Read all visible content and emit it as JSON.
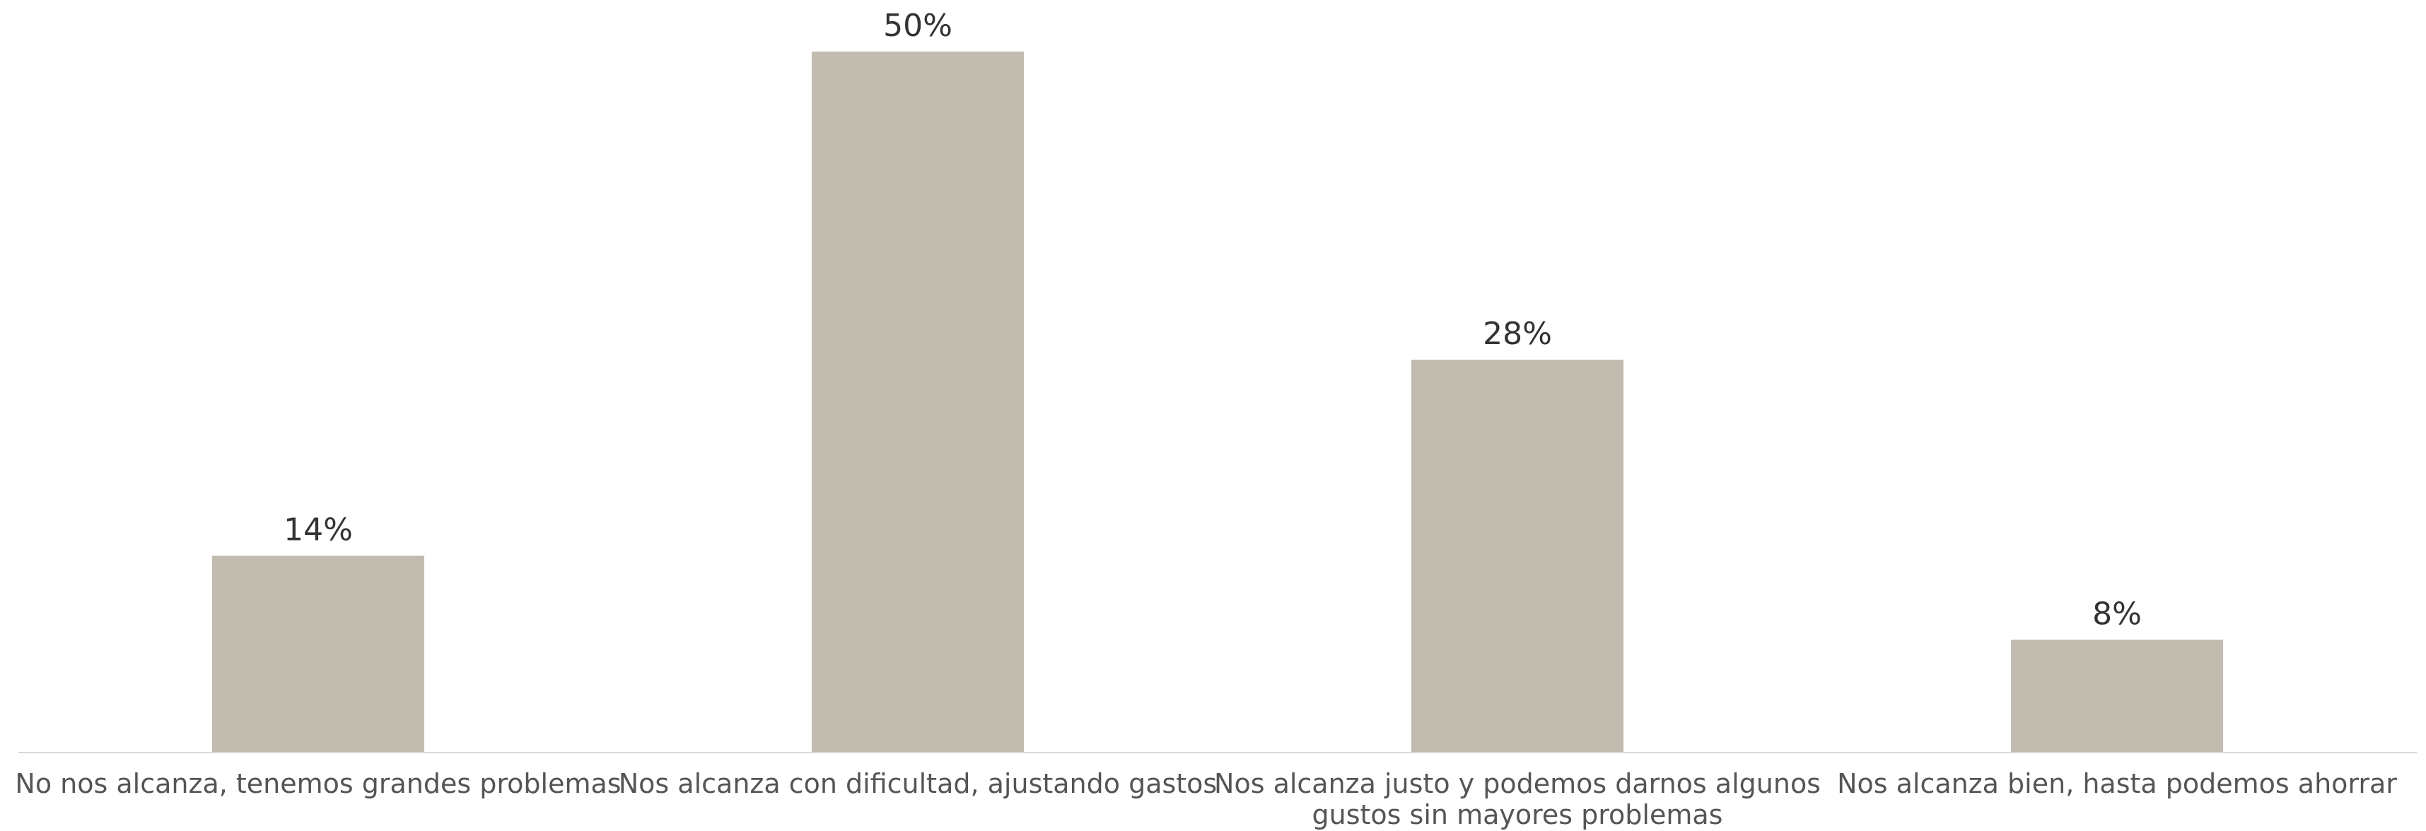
{
  "chart_data": {
    "type": "bar",
    "categories": [
      [
        "No nos alcanza, tenemos grandes problemas"
      ],
      [
        "Nos alcanza con dificultad, ajustando gastos"
      ],
      [
        "Nos alcanza justo y podemos darnos algunos",
        "gustos sin mayores problemas"
      ],
      [
        "Nos alcanza bien, hasta podemos ahorrar"
      ]
    ],
    "values": [
      14,
      50,
      28,
      8
    ],
    "data_labels": [
      "14%",
      "50%",
      "28%",
      "8%"
    ],
    "unit": "%",
    "ylim": [
      0,
      50
    ],
    "grid": false,
    "colors": {
      "bar": "#c2bcb0",
      "axis": "#d9d9d9",
      "value_label": "#333333",
      "category_label": "#555555"
    }
  }
}
